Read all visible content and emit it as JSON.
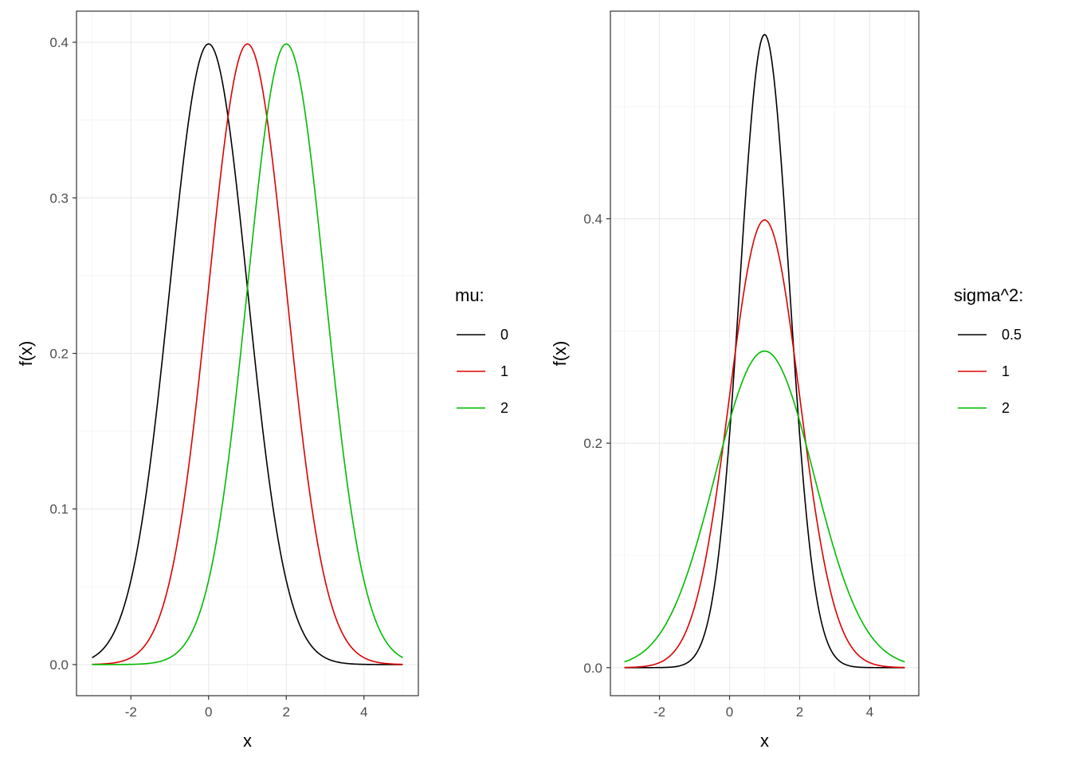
{
  "colors": {
    "series": [
      "#000000",
      "#dd0000",
      "#00bb00"
    ],
    "grid_major": "#ebebeb",
    "grid_minor": "#f5f5f5",
    "panel_border": "#333333",
    "tick_text": "#4d4d4d"
  },
  "chart_data": [
    {
      "type": "line",
      "xlabel": "x",
      "ylabel": "f(x)",
      "xlim": [
        -3.4,
        5.4
      ],
      "ylim": [
        -0.02,
        0.42
      ],
      "x_ticks": [
        -2,
        0,
        2,
        4
      ],
      "x_tick_labels": [
        "-2",
        "0",
        "2",
        "4"
      ],
      "y_ticks": [
        0.0,
        0.1,
        0.2,
        0.3,
        0.4
      ],
      "y_tick_labels": [
        "0.0",
        "0.1",
        "0.2",
        "0.3",
        "0.4"
      ],
      "grid": true,
      "legend_position": "right",
      "legend_title": "mu:",
      "x_range": [
        -3,
        5
      ],
      "series": [
        {
          "name": "0",
          "function": "normal_pdf",
          "mean": 0,
          "variance": 1
        },
        {
          "name": "1",
          "function": "normal_pdf",
          "mean": 1,
          "variance": 1
        },
        {
          "name": "2",
          "function": "normal_pdf",
          "mean": 2,
          "variance": 1
        }
      ]
    },
    {
      "type": "line",
      "xlabel": "x",
      "ylabel": "f(x)",
      "xlim": [
        -3.4,
        5.4
      ],
      "ylim": [
        -0.025,
        0.585
      ],
      "x_ticks": [
        -2,
        0,
        2,
        4
      ],
      "x_tick_labels": [
        "-2",
        "0",
        "2",
        "4"
      ],
      "y_ticks": [
        0.0,
        0.2,
        0.4
      ],
      "y_tick_labels": [
        "0.0",
        "0.2",
        "0.4"
      ],
      "grid": true,
      "legend_position": "right",
      "legend_title": "sigma^2:",
      "x_range": [
        -3,
        5
      ],
      "series": [
        {
          "name": "0.5",
          "function": "normal_pdf",
          "mean": 1,
          "variance": 0.5
        },
        {
          "name": "1",
          "function": "normal_pdf",
          "mean": 1,
          "variance": 1
        },
        {
          "name": "2",
          "function": "normal_pdf",
          "mean": 1,
          "variance": 2
        }
      ]
    }
  ]
}
